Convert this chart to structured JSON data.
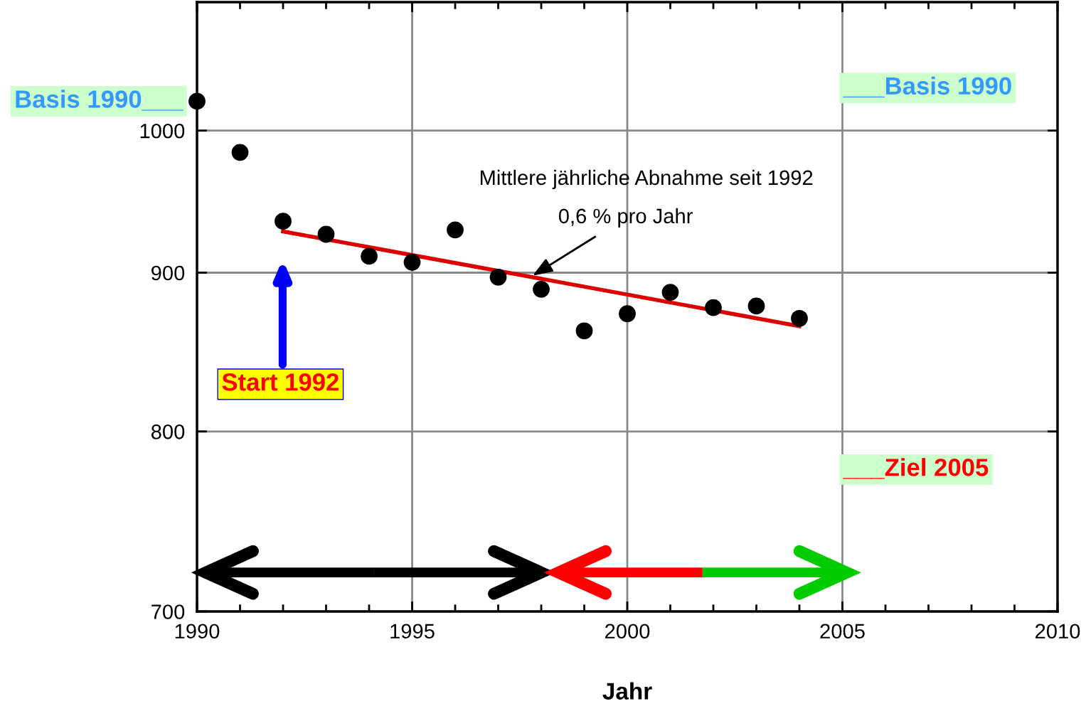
{
  "chart_data": {
    "type": "scatter",
    "xlabel": "Jahr",
    "x": [
      1990,
      1991,
      1992,
      1993,
      1994,
      1995,
      1996,
      1997,
      1998,
      1999,
      2000,
      2001,
      2002,
      2003,
      2004
    ],
    "series": [
      {
        "color": "#000000",
        "marker": "circle",
        "values": [
          1022,
          984,
          935,
          926,
          911,
          907,
          929,
          897,
          889,
          862,
          873,
          887,
          877,
          878,
          870
        ]
      },
      {
        "type": "line",
        "color": "#dd0000",
        "marker": "none",
        "line_style": "solid",
        "x": [
          1992,
          2004
        ],
        "values": [
          928,
          865
        ]
      }
    ],
    "annotations": [
      {
        "text": "Basis 1990___",
        "x": 1990,
        "y": 1022
      },
      "___Basis 1990",
      "___Ziel 2005",
      "Start 1992",
      "Mittlere jährliche Abnahme seit 1992",
      {
        "text": "0,6 % pro Jahr",
        "x": 1997.8,
        "y": 898
      }
    ],
    "xlim": [
      1990,
      2010
    ],
    "xticks": [
      1990,
      1995,
      2000,
      2005,
      2010
    ],
    "ylim": [
      700,
      1100
    ],
    "yticks": [
      700,
      800,
      900,
      1000
    ],
    "log": "y",
    "grid": true,
    "legend": false
  }
}
